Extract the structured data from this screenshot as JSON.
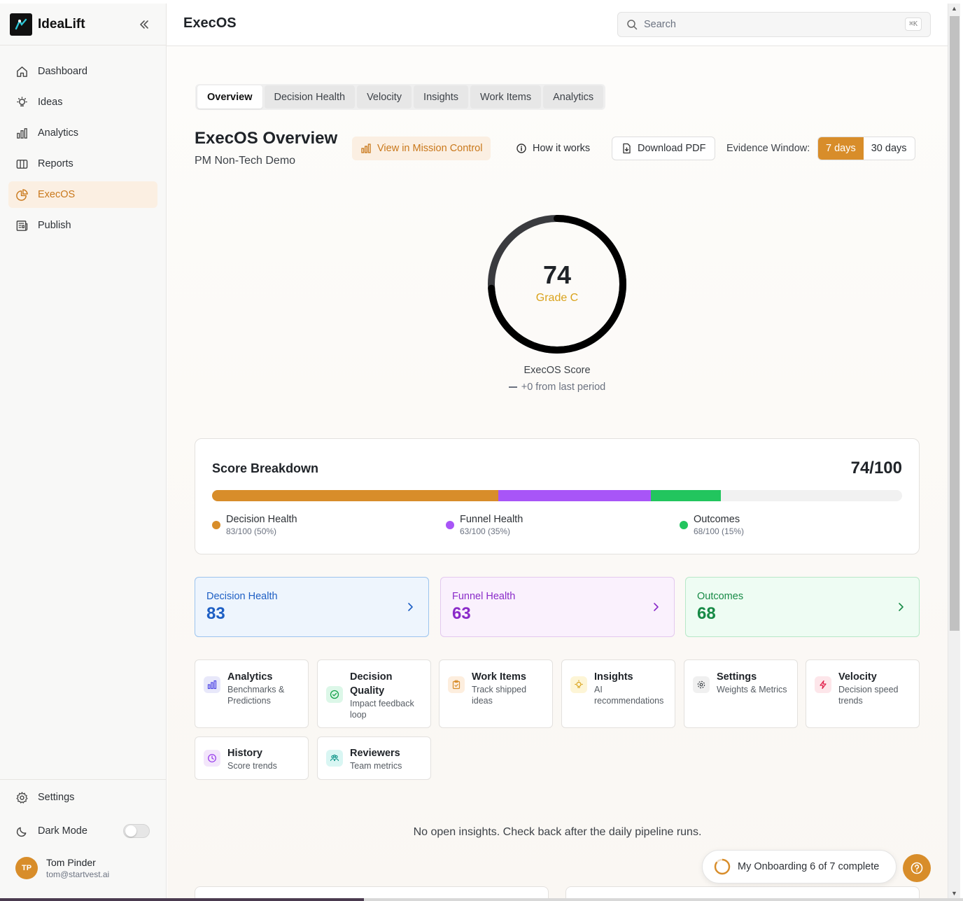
{
  "brand": {
    "name": "IdeaLift"
  },
  "sidebar": {
    "items": [
      {
        "label": "Dashboard",
        "icon": "home-icon"
      },
      {
        "label": "Ideas",
        "icon": "lightbulb-icon"
      },
      {
        "label": "Analytics",
        "icon": "bar-chart-icon"
      },
      {
        "label": "Reports",
        "icon": "book-icon"
      },
      {
        "label": "ExecOS",
        "icon": "pie-chart-icon",
        "active": true
      },
      {
        "label": "Publish",
        "icon": "newspaper-icon"
      }
    ],
    "settings_label": "Settings",
    "dark_mode_label": "Dark Mode",
    "dark_mode_on": false
  },
  "user": {
    "initials": "TP",
    "name": "Tom Pinder",
    "email": "tom@startvest.ai"
  },
  "header": {
    "title": "ExecOS",
    "search_placeholder": "Search",
    "search_shortcut": "⌘K"
  },
  "tabs": [
    "Overview",
    "Decision Health",
    "Velocity",
    "Insights",
    "Work Items",
    "Analytics"
  ],
  "active_tab": "Overview",
  "overview": {
    "title": "ExecOS Overview",
    "subtitle": "PM Non-Tech Demo",
    "mission_control_label": "View in Mission Control",
    "how_it_works_label": "How it works",
    "download_pdf_label": "Download PDF",
    "evidence_window_label": "Evidence Window:",
    "evidence_options": [
      "7 days",
      "30 days"
    ],
    "evidence_selected": "7 days"
  },
  "score": {
    "value": "74",
    "fraction": 0.74,
    "grade": "Grade C",
    "label": "ExecOS Score",
    "delta": "+0 from last period"
  },
  "breakdown": {
    "title": "Score Breakdown",
    "total": "74/100",
    "segments": [
      {
        "name": "Decision Health",
        "detail": "83/100 (50%)",
        "contribution": 41.5,
        "color": "#d88d2a"
      },
      {
        "name": "Funnel Health",
        "detail": "63/100 (35%)",
        "contribution": 22.05,
        "color": "#a855f7"
      },
      {
        "name": "Outcomes",
        "detail": "68/100 (15%)",
        "contribution": 10.2,
        "color": "#22c55e"
      }
    ]
  },
  "categories": [
    {
      "name": "Decision Health",
      "value": "83",
      "bg": "#eef5fd",
      "border": "#9cc4ee",
      "text": "#1e5fc4"
    },
    {
      "name": "Funnel Health",
      "value": "63",
      "bg": "#faf1fd",
      "border": "#e3c9ef",
      "text": "#8a2bc9"
    },
    {
      "name": "Outcomes",
      "value": "68",
      "bg": "#eefcf3",
      "border": "#b7e8c8",
      "text": "#178a46"
    }
  ],
  "cards": [
    {
      "title": "Analytics",
      "desc": "Benchmarks & Predictions",
      "icon": "bar-chart-icon",
      "icon_bg": "#e8e8fa",
      "icon_color": "#4f46e5"
    },
    {
      "title": "Decision Quality",
      "desc": "Impact feedback loop",
      "icon": "check-circle-icon",
      "icon_bg": "#dcf7e8",
      "icon_color": "#16a34a"
    },
    {
      "title": "Work Items",
      "desc": "Track shipped ideas",
      "icon": "clipboard-icon",
      "icon_bg": "#fdeede",
      "icon_color": "#d88d2a"
    },
    {
      "title": "Insights",
      "desc": "AI recommendations",
      "icon": "lightbulb-icon",
      "icon_bg": "#fdf5d6",
      "icon_color": "#d9a21b"
    },
    {
      "title": "Settings",
      "desc": "Weights & Metrics",
      "icon": "gear-icon",
      "icon_bg": "#f0f0f0",
      "icon_color": "#3d4248"
    },
    {
      "title": "Velocity",
      "desc": "Decision speed trends",
      "icon": "bolt-icon",
      "icon_bg": "#fde6ea",
      "icon_color": "#e11d48"
    },
    {
      "title": "History",
      "desc": "Score trends",
      "icon": "clock-icon",
      "icon_bg": "#f3e6fb",
      "icon_color": "#9333ea"
    },
    {
      "title": "Reviewers",
      "desc": "Team metrics",
      "icon": "users-icon",
      "icon_bg": "#d9f6f3",
      "icon_color": "#0d9488"
    }
  ],
  "insights_empty": "No open insights. Check back after the daily pipeline runs.",
  "onboarding": {
    "label": "My Onboarding 6 of 7 complete",
    "progress": 0.857
  }
}
